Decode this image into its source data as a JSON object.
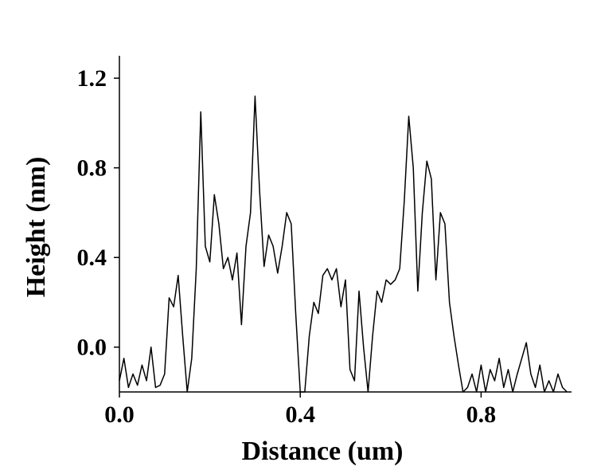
{
  "chart_data": {
    "type": "line",
    "xlabel": "Distance (um)",
    "ylabel": "Height (nm)",
    "xlim": [
      0,
      1.0
    ],
    "ylim": [
      -0.2,
      1.3
    ],
    "xticks": [
      {
        "value": 0,
        "label": "0.0"
      },
      0.4,
      0.8
    ],
    "yticks": [
      {
        "value": 0,
        "label": "0.0"
      },
      0.4,
      0.8,
      1.2
    ],
    "color": "#000000",
    "x": [
      0,
      0.01,
      0.02,
      0.03,
      0.04,
      0.05,
      0.06,
      0.07,
      0.08,
      0.09,
      0.1,
      0.11,
      0.12,
      0.13,
      0.14,
      0.15,
      0.16,
      0.17,
      0.18,
      0.19,
      0.2,
      0.21,
      0.22,
      0.23,
      0.24,
      0.25,
      0.26,
      0.27,
      0.28,
      0.29,
      0.3,
      0.31,
      0.32,
      0.33,
      0.34,
      0.35,
      0.36,
      0.37,
      0.38,
      0.39,
      0.4,
      0.41,
      0.42,
      0.43,
      0.44,
      0.45,
      0.46,
      0.47,
      0.48,
      0.49,
      0.5,
      0.51,
      0.52,
      0.53,
      0.54,
      0.55,
      0.56,
      0.57,
      0.58,
      0.59,
      0.6,
      0.61,
      0.62,
      0.63,
      0.64,
      0.65,
      0.66,
      0.67,
      0.68,
      0.69,
      0.7,
      0.71,
      0.72,
      0.73,
      0.74,
      0.75,
      0.76,
      0.77,
      0.78,
      0.79,
      0.8,
      0.81,
      0.82,
      0.83,
      0.84,
      0.85,
      0.86,
      0.87,
      0.88,
      0.89,
      0.9,
      0.91,
      0.92,
      0.93,
      0.94,
      0.95,
      0.96,
      0.97,
      0.98,
      0.99
    ],
    "values": [
      -0.15,
      -0.05,
      -0.18,
      -0.12,
      -0.17,
      -0.08,
      -0.15,
      0.0,
      -0.18,
      -0.17,
      -0.12,
      0.22,
      0.18,
      0.32,
      0.05,
      -0.2,
      -0.05,
      0.35,
      1.05,
      0.45,
      0.38,
      0.68,
      0.55,
      0.35,
      0.4,
      0.3,
      0.42,
      0.1,
      0.45,
      0.6,
      1.12,
      0.7,
      0.36,
      0.5,
      0.45,
      0.33,
      0.45,
      0.6,
      0.55,
      0.15,
      -0.2,
      -0.2,
      0.05,
      0.2,
      0.15,
      0.32,
      0.35,
      0.3,
      0.35,
      0.18,
      0.3,
      -0.1,
      -0.15,
      0.25,
      0.0,
      -0.2,
      0.05,
      0.25,
      0.2,
      0.3,
      0.28,
      0.3,
      0.35,
      0.65,
      1.03,
      0.8,
      0.25,
      0.6,
      0.83,
      0.75,
      0.3,
      0.6,
      0.55,
      0.2,
      0.05,
      -0.08,
      -0.2,
      -0.18,
      -0.12,
      -0.2,
      -0.08,
      -0.2,
      -0.1,
      -0.15,
      -0.05,
      -0.18,
      -0.1,
      -0.2,
      -0.12,
      -0.05,
      0.02,
      -0.12,
      -0.18,
      -0.08,
      -0.2,
      -0.15,
      -0.2,
      -0.12,
      -0.18,
      -0.2
    ]
  }
}
